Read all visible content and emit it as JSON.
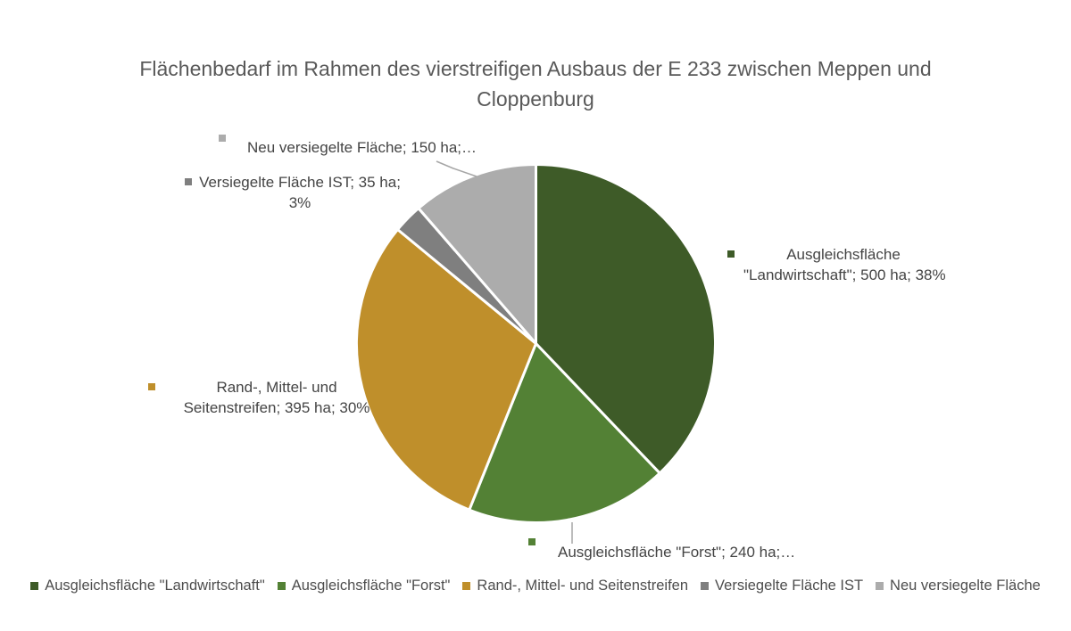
{
  "chart_data": {
    "type": "pie",
    "title": "Flächenbedarf im Rahmen des vierstreifigen Ausbaus der E 233 zwischen Meppen und Cloppenburg",
    "unit": "ha",
    "total": 1320,
    "start_angle": "top",
    "direction": "clockwise",
    "legend_position": "bottom",
    "series": [
      {
        "name": "Ausgleichsfläche \"Landwirtschaft\"",
        "value": 500,
        "percent": 38,
        "color": "#3e5b28"
      },
      {
        "name": "Ausgleichsfläche \"Forst\"",
        "value": 240,
        "percent": 18,
        "color": "#538135"
      },
      {
        "name": "Rand-, Mittel- und Seitenstreifen",
        "value": 395,
        "percent": 30,
        "color": "#bf8f2b"
      },
      {
        "name": "Versiegelte Fläche IST",
        "value": 35,
        "percent": 3,
        "color": "#7f7f7f"
      },
      {
        "name": "Neu versiegelte Fläche",
        "value": 150,
        "percent": 11,
        "color": "#acacac"
      }
    ]
  },
  "data_labels": {
    "neu": {
      "line1": "Neu versiegelte Fläche; 150 ha;…"
    },
    "ist": {
      "line1": "Versiegelte Fläche IST; 35 ha;",
      "line2": "3%"
    },
    "landwirtschaft": {
      "line1": "Ausgleichsfläche",
      "line2": "\"Landwirtschaft\"; 500 ha; 38%"
    },
    "rand": {
      "line1": "Rand-, Mittel- und",
      "line2": "Seitenstreifen; 395 ha; 30%"
    },
    "forst": {
      "line1": "Ausgleichsfläche \"Forst\"; 240 ha;…"
    }
  }
}
